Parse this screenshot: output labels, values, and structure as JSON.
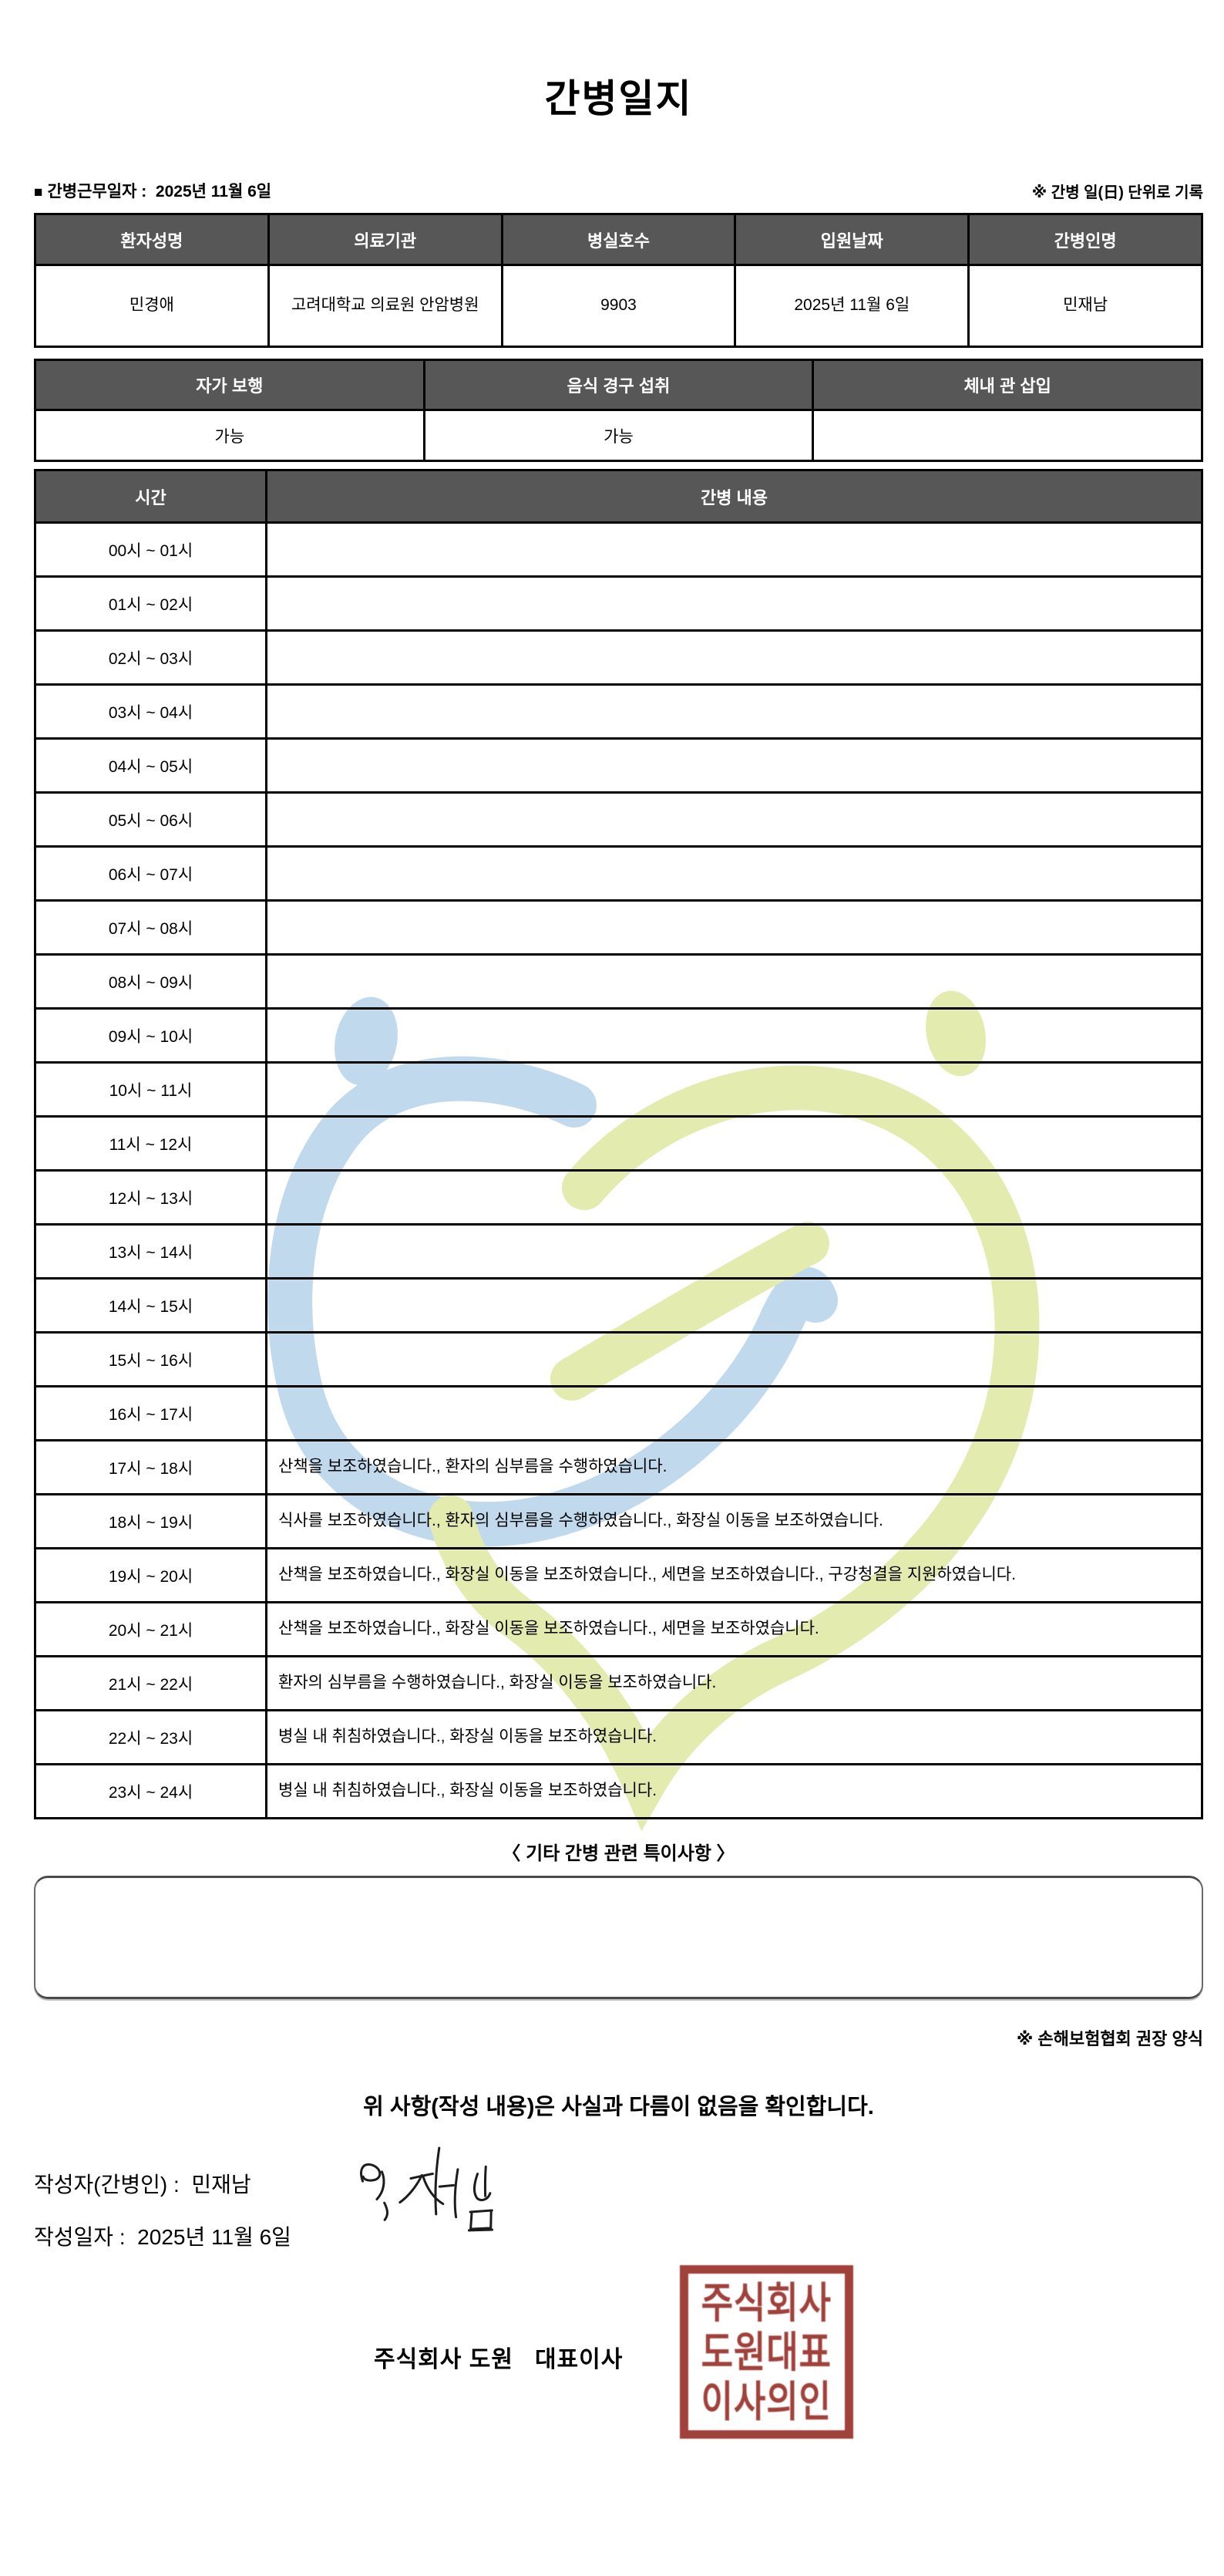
{
  "title": "간병일지",
  "meta": {
    "work_date_label": "간병근무일자 :",
    "work_date_value": "2025년 11월 6일",
    "unit_note": "※ 간병 일(日) 단위로 기록"
  },
  "info_table": {
    "headers": [
      "환자성명",
      "의료기관",
      "병실호수",
      "입원날짜",
      "간병인명"
    ],
    "values": [
      "민경애",
      "고려대학교 의료원 안암병원",
      "9903",
      "2025년 11월 6일",
      "민재남"
    ]
  },
  "status_table": {
    "headers": [
      "자가 보행",
      "음식 경구 섭취",
      "체내 관 삽입"
    ],
    "values": [
      "가능",
      "가능",
      ""
    ]
  },
  "care_table": {
    "time_header": "시간",
    "content_header": "간병 내용",
    "rows": [
      {
        "time": "00시 ~ 01시",
        "content": ""
      },
      {
        "time": "01시 ~ 02시",
        "content": ""
      },
      {
        "time": "02시 ~ 03시",
        "content": ""
      },
      {
        "time": "03시 ~ 04시",
        "content": ""
      },
      {
        "time": "04시 ~ 05시",
        "content": ""
      },
      {
        "time": "05시 ~ 06시",
        "content": ""
      },
      {
        "time": "06시 ~ 07시",
        "content": ""
      },
      {
        "time": "07시 ~ 08시",
        "content": ""
      },
      {
        "time": "08시 ~ 09시",
        "content": ""
      },
      {
        "time": "09시 ~ 10시",
        "content": ""
      },
      {
        "time": "10시 ~ 11시",
        "content": ""
      },
      {
        "time": "11시 ~ 12시",
        "content": ""
      },
      {
        "time": "12시 ~ 13시",
        "content": ""
      },
      {
        "time": "13시 ~ 14시",
        "content": ""
      },
      {
        "time": "14시 ~ 15시",
        "content": ""
      },
      {
        "time": "15시 ~ 16시",
        "content": ""
      },
      {
        "time": "16시 ~ 17시",
        "content": ""
      },
      {
        "time": "17시 ~ 18시",
        "content": "산책을 보조하였습니다., 환자의 심부름을 수행하였습니다."
      },
      {
        "time": "18시 ~ 19시",
        "content": "식사를 보조하였습니다., 환자의 심부름을 수행하였습니다., 화장실 이동을 보조하였습니다."
      },
      {
        "time": "19시 ~ 20시",
        "content": "산책을 보조하였습니다., 화장실 이동을 보조하였습니다., 세면을 보조하였습니다., 구강청결을 지원하였습니다."
      },
      {
        "time": "20시 ~ 21시",
        "content": "산책을 보조하였습니다., 화장실 이동을 보조하였습니다., 세면을 보조하였습니다."
      },
      {
        "time": "21시 ~ 22시",
        "content": "환자의 심부름을 수행하였습니다., 화장실 이동을 보조하였습니다."
      },
      {
        "time": "22시 ~ 23시",
        "content": "병실 내 취침하였습니다., 화장실 이동을 보조하였습니다."
      },
      {
        "time": "23시 ~ 24시",
        "content": "병실 내 취침하였습니다., 화장실 이동을 보조하였습니다."
      }
    ]
  },
  "notes": {
    "title": "〈 기타 간병 관련 특이사항 〉",
    "content": "",
    "form_note": "※ 손해보험협회 권장 양식"
  },
  "footer": {
    "statement": "위 사항(작성 내용)은 사실과 다름이 없음을 확인합니다.",
    "writer_label": "작성자(간병인) :",
    "writer_name": "민재남",
    "date_label": "작성일자 :",
    "date_value": "2025년 11월 6일",
    "company_line": "주식회사 도원   대표이사",
    "seal_text": "주식회사\n도원대표\n이사의인"
  },
  "colors": {
    "header_bg": "#575757",
    "seal_red": "#9e3a33",
    "watermark_blue": "#bed7ec",
    "watermark_green": "#e2ebaa"
  }
}
